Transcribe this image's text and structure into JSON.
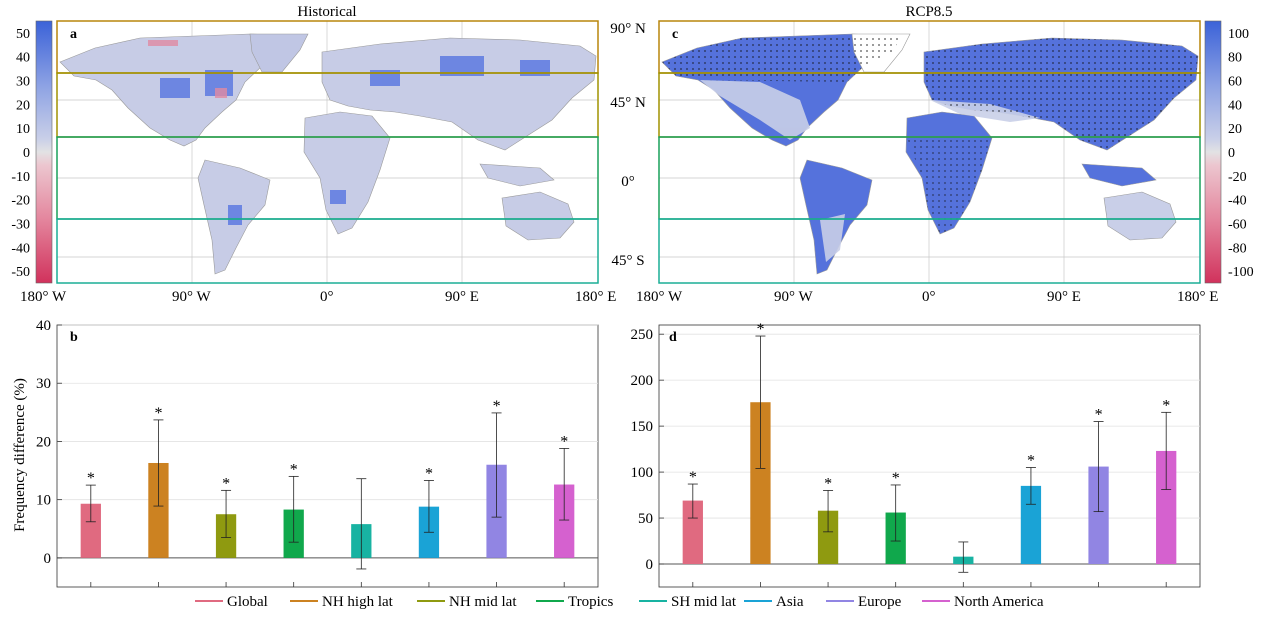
{
  "panels": {
    "a": {
      "letter": "a",
      "title": "Historical"
    },
    "b": {
      "letter": "b"
    },
    "c": {
      "letter": "c",
      "title": "RCP8.5"
    },
    "d": {
      "letter": "d"
    }
  },
  "maps": {
    "lon_ticks": [
      "180° W",
      "90° W",
      "0°",
      "90° E",
      "180° E"
    ],
    "lat_labels": [
      "90° N",
      "45° N",
      "0°",
      "45° S"
    ],
    "left_colorbar": {
      "ticks": [
        "50",
        "40",
        "30",
        "20",
        "10",
        "0",
        "-10",
        "-20",
        "-30",
        "-40",
        "-50"
      ],
      "range": [
        -55,
        55
      ]
    },
    "right_colorbar": {
      "ticks": [
        "100",
        "80",
        "60",
        "40",
        "20",
        "0",
        "-20",
        "-40",
        "-60",
        "-80",
        "-100"
      ],
      "range": [
        -110,
        110
      ]
    },
    "bands": [
      {
        "name": "NH high lat",
        "lat_range": [
          60,
          90
        ],
        "color": "#b8860b"
      },
      {
        "name": "NH mid lat",
        "lat_range": [
          23,
          60
        ],
        "color": "#a09200"
      },
      {
        "name": "Tropics",
        "lat_range": [
          -23,
          23
        ],
        "color": "#19a05a"
      },
      {
        "name": "SH mid lat",
        "lat_range": [
          -60,
          -23
        ],
        "color": "#1aae96"
      }
    ]
  },
  "chart_data": [
    {
      "type": "bar",
      "panel": "b",
      "title": "",
      "xlabel": "",
      "ylabel": "Frequency difference (%)",
      "ylim": [
        -5,
        40
      ],
      "yticks": [
        0,
        10,
        20,
        30,
        40
      ],
      "categories": [
        "Global",
        "NH high lat",
        "NH mid lat",
        "Tropics",
        "SH mid lat",
        "Asia",
        "Europe",
        "North America"
      ],
      "values": [
        9.3,
        16.3,
        7.5,
        8.3,
        5.8,
        8.8,
        16.0,
        12.6
      ],
      "err_low": [
        6.2,
        8.9,
        3.5,
        2.7,
        -1.9,
        4.4,
        7.0,
        6.5
      ],
      "err_high": [
        12.5,
        23.7,
        11.6,
        14.0,
        13.6,
        13.3,
        24.9,
        18.8
      ],
      "significance": [
        "*",
        "*",
        "*",
        "*",
        "",
        "*",
        "*",
        "*"
      ]
    },
    {
      "type": "bar",
      "panel": "d",
      "title": "",
      "xlabel": "",
      "ylabel": "",
      "ylim": [
        -25,
        260
      ],
      "yticks": [
        0,
        50,
        100,
        150,
        200,
        250
      ],
      "categories": [
        "Global",
        "NH high lat",
        "NH mid lat",
        "Tropics",
        "SH mid lat",
        "Asia",
        "Europe",
        "North America"
      ],
      "values": [
        69,
        176,
        58,
        56,
        8,
        85,
        106,
        123
      ],
      "err_low": [
        50,
        104,
        35,
        25,
        -9,
        65,
        57,
        81
      ],
      "err_high": [
        87,
        248,
        80,
        86,
        24,
        105,
        155,
        165
      ],
      "significance": [
        "*",
        "*",
        "*",
        "*",
        "",
        "*",
        "*",
        "*"
      ]
    }
  ],
  "legend": {
    "items": [
      {
        "label": "Global",
        "color": "#e06a80"
      },
      {
        "label": "NH high lat",
        "color": "#cc8221"
      },
      {
        "label": "NH mid lat",
        "color": "#8f9a10"
      },
      {
        "label": "Tropics",
        "color": "#10a84c"
      },
      {
        "label": "SH mid lat",
        "color": "#18b3a2"
      },
      {
        "label": "Asia",
        "color": "#1aa3d6"
      },
      {
        "label": "Europe",
        "color": "#9185e3"
      },
      {
        "label": "North America",
        "color": "#d561cf"
      }
    ]
  }
}
